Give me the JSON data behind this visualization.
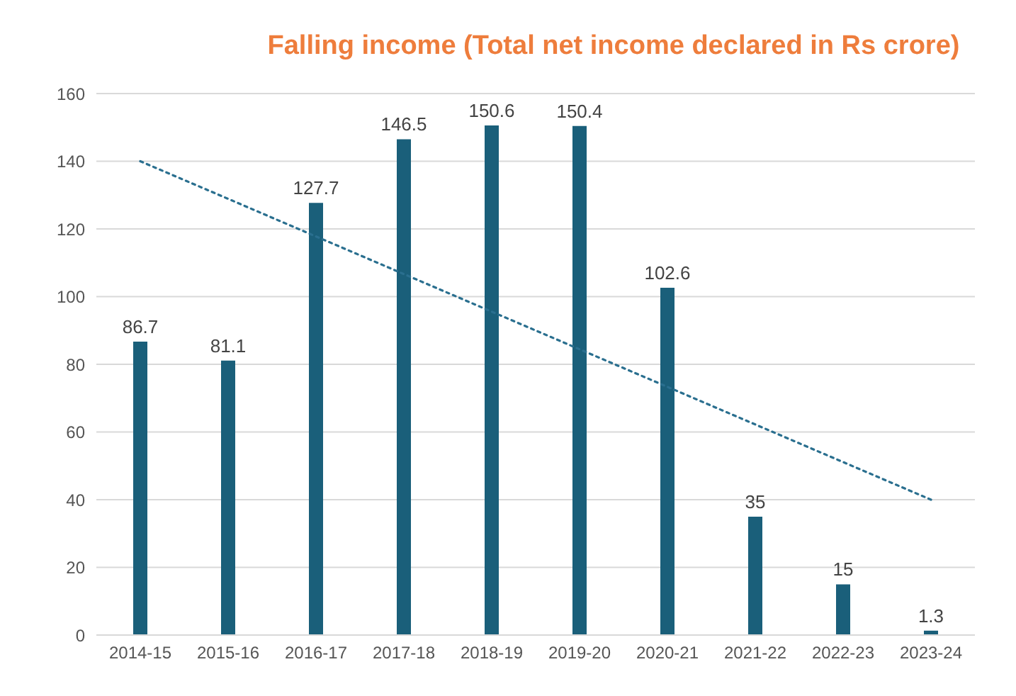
{
  "chart_data": {
    "type": "bar",
    "title": "Falling income (Total net income declared in Rs crore)",
    "categories": [
      "2014-15",
      "2015-16",
      "2016-17",
      "2017-18",
      "2018-19",
      "2019-20",
      "2020-21",
      "2021-22",
      "2022-23",
      "2023-24"
    ],
    "series": [
      {
        "color": "#1a5f7a",
        "values": [
          86.7,
          81.1,
          127.7,
          146.5,
          150.6,
          150.4,
          102.6,
          35,
          15,
          1.3
        ],
        "value_labels": [
          "86.7",
          "81.1",
          "127.7",
          "146.5",
          "150.6",
          "150.4",
          "102.6",
          "35",
          "15",
          "1.3"
        ]
      },
      {
        "type": "line",
        "color": "#2a6f8f",
        "line_style": "dotted",
        "marker": "none",
        "x": [
          "2014-15",
          "2023-24"
        ],
        "values": [
          140,
          40
        ]
      }
    ],
    "ylim": [
      0,
      160
    ],
    "yticks": [
      0,
      20,
      40,
      60,
      80,
      100,
      120,
      140,
      160
    ],
    "grid": "y"
  }
}
